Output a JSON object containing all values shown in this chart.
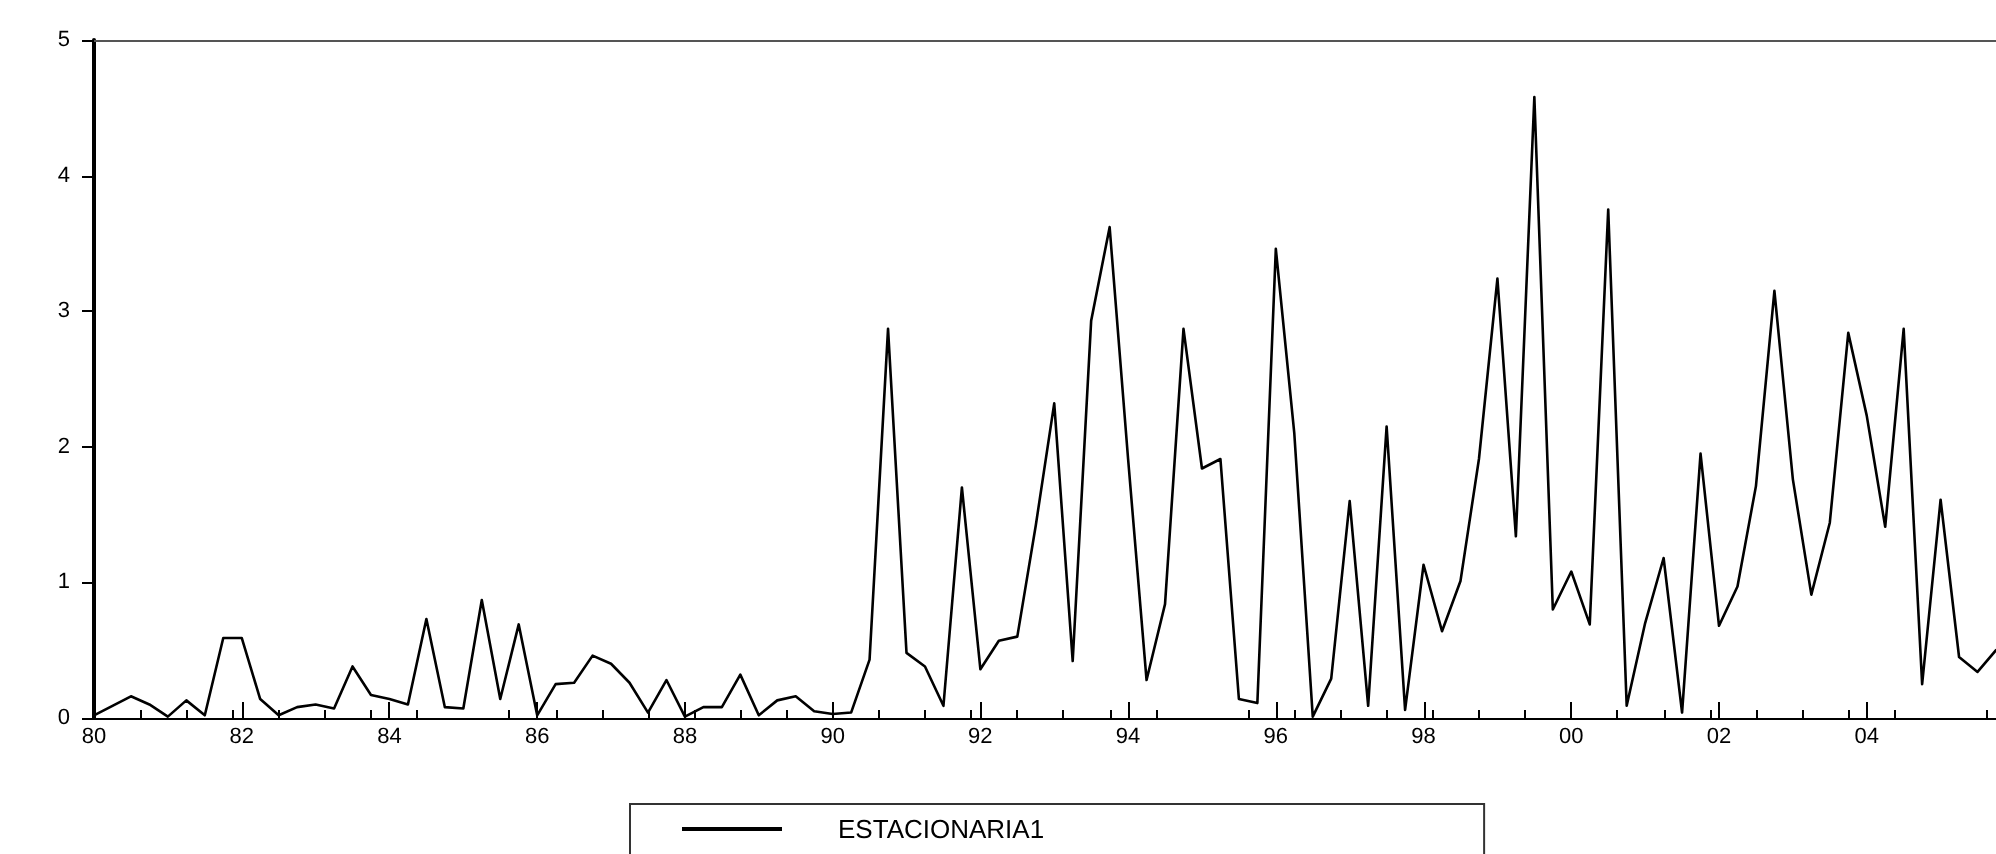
{
  "chart_data": {
    "type": "line",
    "x": [
      1980,
      1980.25,
      1980.5,
      1980.75,
      1981,
      1981.25,
      1981.5,
      1981.75,
      1982,
      1982.25,
      1982.5,
      1982.75,
      1983,
      1983.25,
      1983.5,
      1983.75,
      1984,
      1984.25,
      1984.5,
      1984.75,
      1985,
      1985.25,
      1985.5,
      1985.75,
      1986,
      1986.25,
      1986.5,
      1986.75,
      1987,
      1987.25,
      1987.5,
      1987.75,
      1988,
      1988.25,
      1988.5,
      1988.75,
      1989,
      1989.25,
      1989.5,
      1989.75,
      1990,
      1990.25,
      1990.5,
      1990.75,
      1991,
      1991.25,
      1991.5,
      1991.75,
      1992,
      1992.25,
      1992.5,
      1992.75,
      1993,
      1993.25,
      1993.5,
      1993.75,
      1994,
      1994.25,
      1994.5,
      1994.75,
      1995,
      1995.25,
      1995.5,
      1995.75,
      1996,
      1996.25,
      1996.5,
      1996.75,
      1997,
      1997.25,
      1997.5,
      1997.75,
      1998,
      1998.25,
      1998.5,
      1998.75,
      1999,
      1999.25,
      1999.5,
      1999.75,
      2000,
      2000.25,
      2000.5,
      2000.75,
      2001,
      2001.25,
      2001.5,
      2001.75,
      2002,
      2002.25,
      2002.5,
      2002.75,
      2003,
      2003.25,
      2003.5,
      2003.75,
      2004,
      2004.25,
      2004.5,
      2004.75,
      2005,
      2005.25,
      2005.5,
      2005.75
    ],
    "series": [
      {
        "name": "ESTACIONARIA1",
        "color": "#000000",
        "values": [
          0.02,
          0.09,
          0.16,
          0.1,
          0.01,
          0.13,
          0.02,
          0.59,
          0.59,
          0.14,
          0.02,
          0.08,
          0.1,
          0.07,
          0.38,
          0.17,
          0.14,
          0.1,
          0.73,
          0.08,
          0.07,
          0.87,
          0.14,
          0.69,
          0.02,
          0.25,
          0.26,
          0.46,
          0.4,
          0.26,
          0.04,
          0.28,
          0.01,
          0.08,
          0.08,
          0.32,
          0.02,
          0.13,
          0.16,
          0.05,
          0.03,
          0.04,
          0.43,
          2.87,
          0.48,
          0.38,
          0.09,
          1.7,
          0.36,
          0.57,
          0.6,
          1.42,
          2.32,
          0.42,
          2.93,
          3.62,
          1.91,
          0.28,
          0.84,
          2.87,
          1.84,
          1.91,
          0.14,
          0.11,
          3.46,
          2.1,
          0.01,
          0.29,
          1.6,
          0.09,
          2.15,
          0.06,
          1.13,
          0.64,
          1.01,
          1.91,
          3.24,
          1.34,
          4.58,
          0.8,
          1.08,
          0.69,
          3.75,
          0.09,
          0.7,
          1.18,
          0.04,
          1.95,
          0.68,
          0.97,
          1.71,
          3.15,
          1.76,
          0.91,
          1.44,
          2.84,
          2.23,
          1.41,
          2.87,
          0.25,
          1.61,
          0.45,
          0.34,
          0.5
        ]
      }
    ],
    "xlim": [
      1980,
      2005.75
    ],
    "xticks": [
      {
        "value": 1980,
        "label": "80"
      },
      {
        "value": 1982,
        "label": "82"
      },
      {
        "value": 1984,
        "label": "84"
      },
      {
        "value": 1986,
        "label": "86"
      },
      {
        "value": 1988,
        "label": "88"
      },
      {
        "value": 1990,
        "label": "90"
      },
      {
        "value": 1992,
        "label": "92"
      },
      {
        "value": 1994,
        "label": "94"
      },
      {
        "value": 1996,
        "label": "96"
      },
      {
        "value": 1998,
        "label": "98"
      },
      {
        "value": 2000,
        "label": "00"
      },
      {
        "value": 2002,
        "label": "02"
      },
      {
        "value": 2004,
        "label": "04"
      }
    ],
    "ylim": [
      0,
      5
    ],
    "yticks": [
      0,
      1,
      2,
      3,
      4,
      5
    ],
    "grid": false,
    "legend": "bottom",
    "marker": "none",
    "line_style": "solid"
  }
}
